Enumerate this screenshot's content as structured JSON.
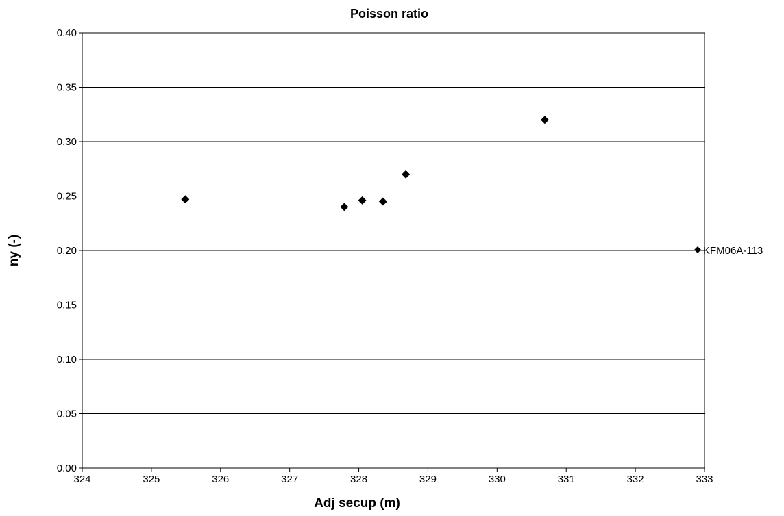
{
  "chart_data": {
    "type": "scatter",
    "title": "Poisson ratio",
    "xlabel": "Adj secup (m)",
    "ylabel": "ny (-)",
    "xlim": [
      324,
      333
    ],
    "ylim": [
      0.0,
      0.4
    ],
    "x_ticks": [
      "324",
      "325",
      "326",
      "327",
      "328",
      "329",
      "330",
      "331",
      "332",
      "333"
    ],
    "y_ticks": [
      "0.00",
      "0.05",
      "0.10",
      "0.15",
      "0.20",
      "0.25",
      "0.30",
      "0.35",
      "0.40"
    ],
    "grid": "horizontal",
    "legend_position": "right",
    "series": [
      {
        "name": "KFM06A-113",
        "marker": "diamond",
        "color": "#000000",
        "points": [
          {
            "x": 325.49,
            "y": 0.247
          },
          {
            "x": 327.79,
            "y": 0.24
          },
          {
            "x": 328.05,
            "y": 0.246
          },
          {
            "x": 328.35,
            "y": 0.245
          },
          {
            "x": 328.68,
            "y": 0.27
          },
          {
            "x": 330.69,
            "y": 0.32
          }
        ]
      }
    ]
  }
}
